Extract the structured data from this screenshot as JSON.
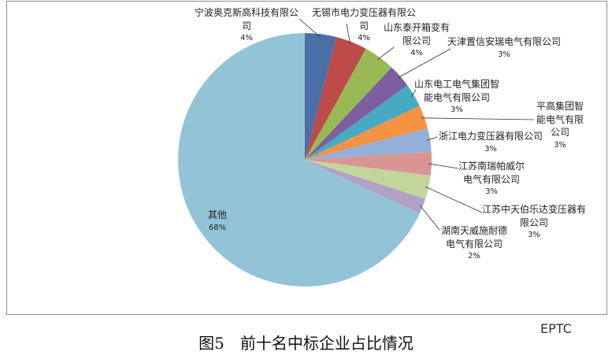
{
  "chart_data": {
    "type": "pie",
    "categories": [
      "宁波奥克斯高科技有限公司",
      "无锡市电力变压器有限公司",
      "山东泰开箱变有限公司",
      "天津置信安瑞电气有限公司",
      "山东电工电气集团智能电气有限公司",
      "平高集团智能电气有限公司",
      "浙江电力变压器有限公司",
      "江苏南瑞帕威尔电气有限公司",
      "江苏中天伯乐达变压器有限公司",
      "湖南天威施耐德电气有限公司",
      "其他"
    ],
    "values": [
      4,
      4,
      4,
      3,
      3,
      3,
      3,
      3,
      3,
      2,
      68
    ],
    "value_labels": [
      "4%",
      "4%",
      "4%",
      "3%",
      "3%",
      "3%",
      "3%",
      "3%",
      "3%",
      "2%",
      "68%"
    ],
    "colors": [
      "#4a6ea8",
      "#be4b48",
      "#98b954",
      "#7d5fa0",
      "#46aac5",
      "#f59343",
      "#95b0d8",
      "#d89593",
      "#c2d69b",
      "#b1a1c7",
      "#93c3d6"
    ]
  },
  "caption": "图5　前十名中标企业占比情况",
  "watermark": "EPTC"
}
